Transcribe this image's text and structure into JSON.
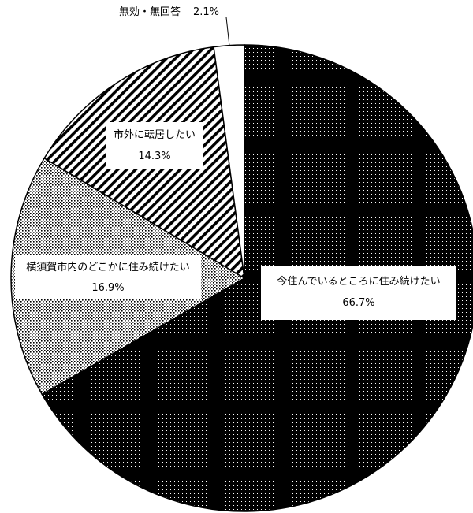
{
  "chart_data": {
    "type": "pie",
    "title": "",
    "slices": [
      {
        "label": "今住んでいるところに住み続けたい",
        "value": 66.7,
        "value_label": "66.7%",
        "pattern": "dots-on-black"
      },
      {
        "label": "横須賀市内のどこかに住み続けたい",
        "value": 16.9,
        "value_label": "16.9%",
        "pattern": "dots-light"
      },
      {
        "label": "市外に転居したい",
        "value": 14.3,
        "value_label": "14.3%",
        "pattern": "diagonal-stripes"
      },
      {
        "label": "無効・無回答",
        "value": 2.1,
        "value_label": "2.1%",
        "pattern": "white"
      }
    ],
    "start_angle": "12 o'clock",
    "direction": "clockwise",
    "legend": "none",
    "grid": false
  },
  "colors": {
    "edge": "#000000",
    "background": "#ffffff"
  }
}
